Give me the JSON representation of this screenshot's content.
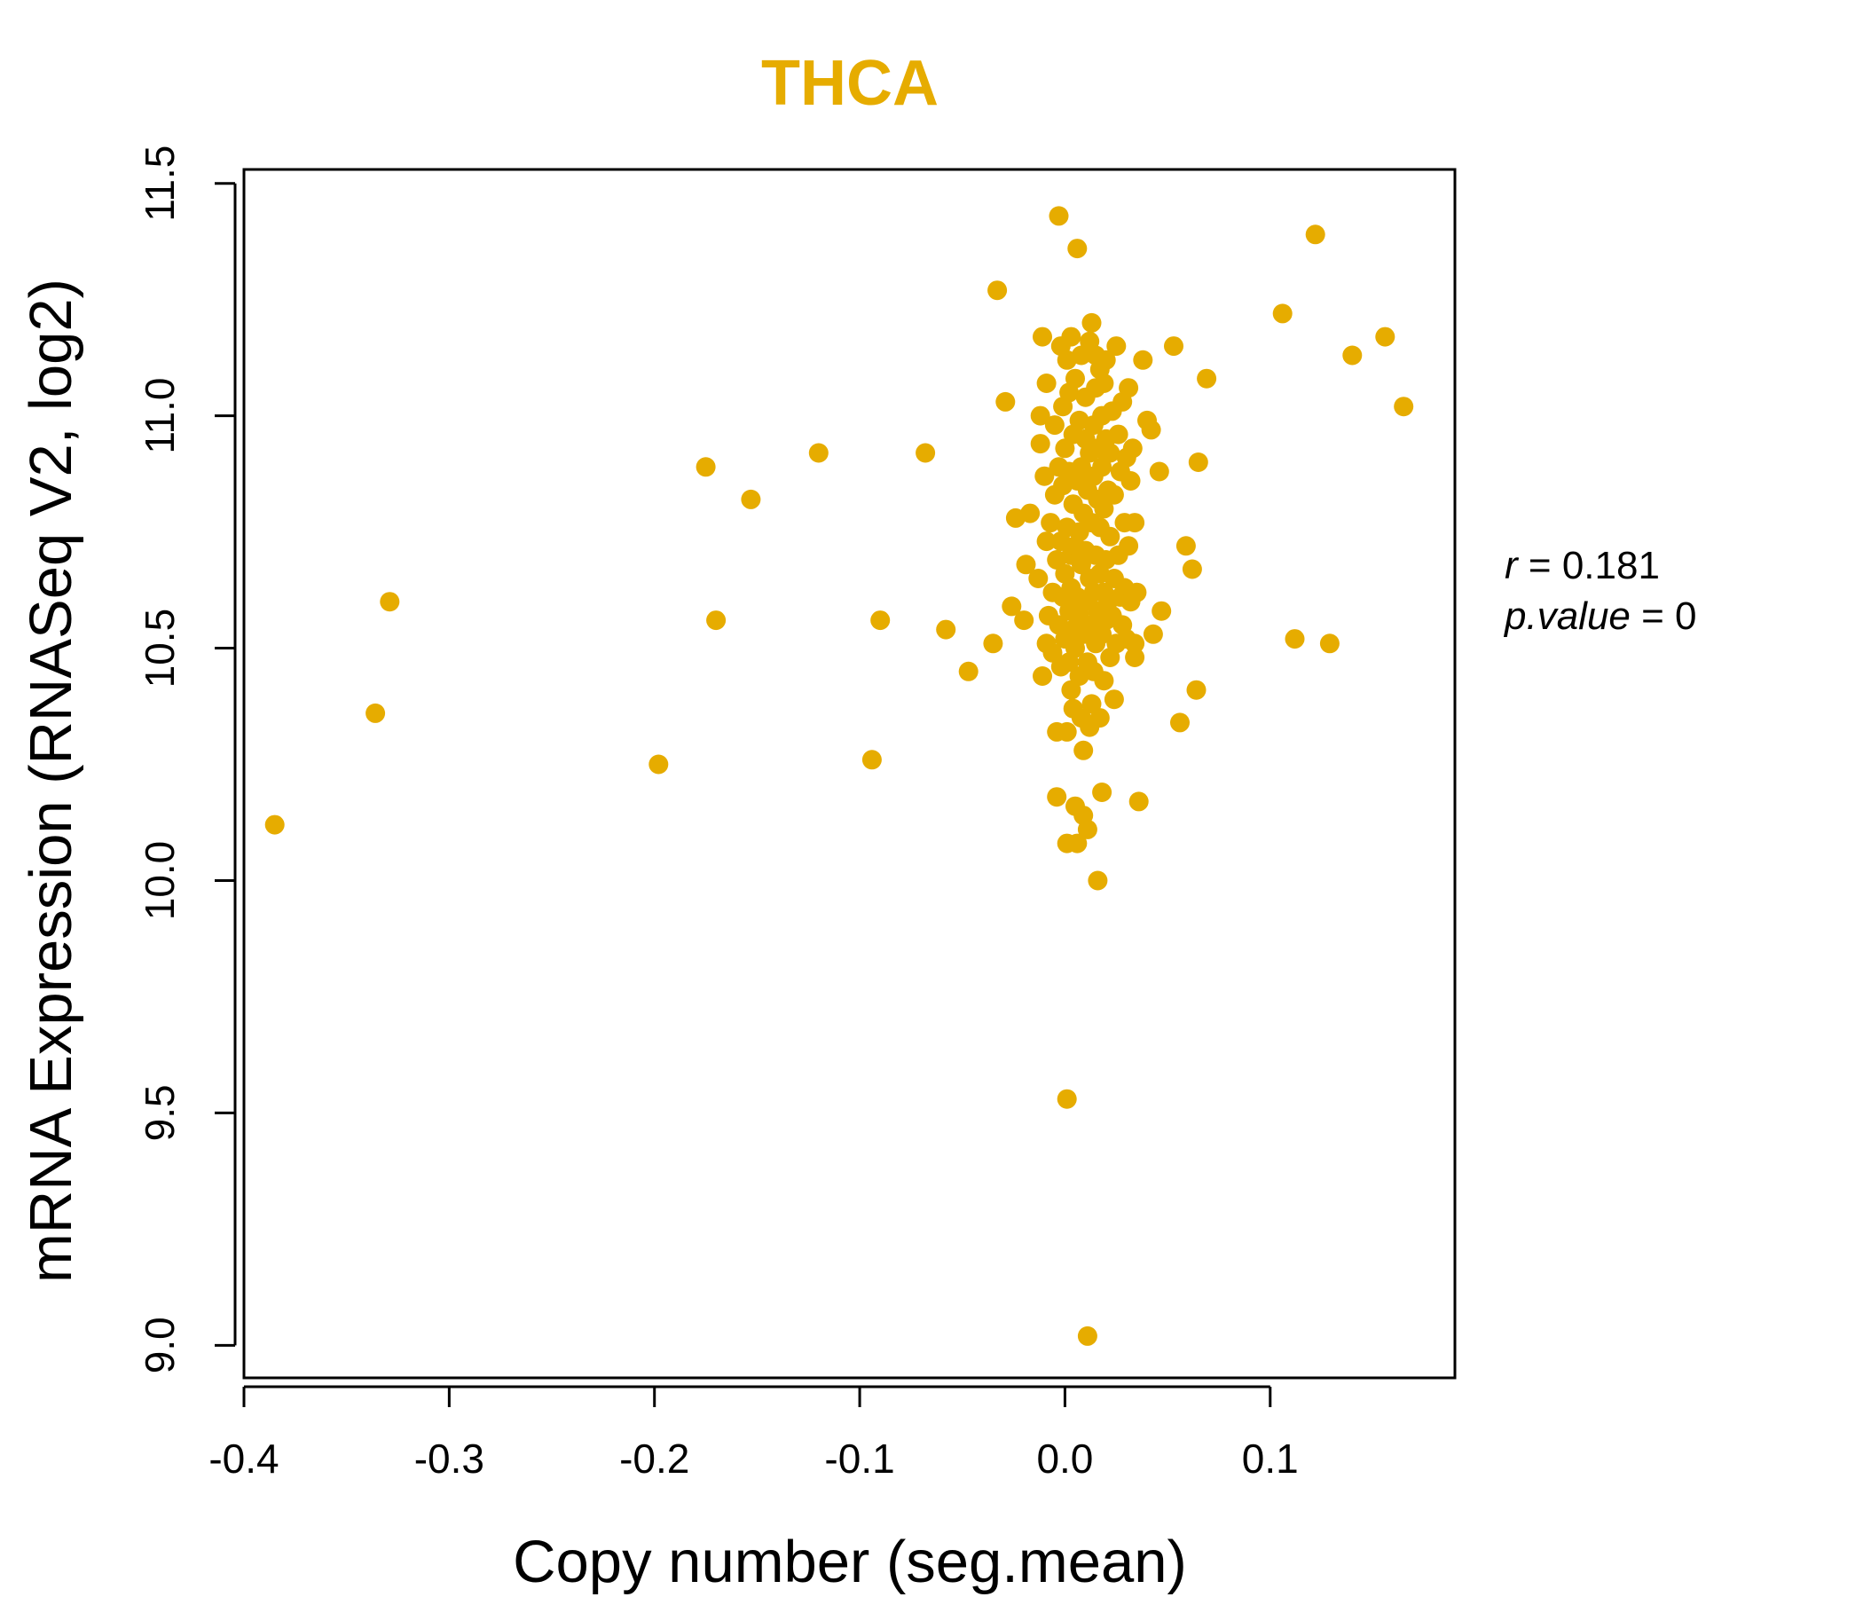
{
  "chart_data": {
    "type": "scatter",
    "title": "THCA",
    "xlabel": "Copy number (seg.mean)",
    "ylabel": "mRNA Expression (RNASeq V2, log2)",
    "xlim": [
      -0.4,
      0.19
    ],
    "ylim": [
      8.93,
      11.53
    ],
    "x_ticks": [
      -0.4,
      -0.3,
      -0.2,
      -0.1,
      0.0,
      0.1
    ],
    "x_tick_labels": [
      "-0.4",
      "-0.3",
      "-0.2",
      "-0.1",
      "0.0",
      "0.1"
    ],
    "y_ticks": [
      9.0,
      9.5,
      10.0,
      10.5,
      11.0,
      11.5
    ],
    "y_tick_labels": [
      "9.0",
      "9.5",
      "10.0",
      "10.5",
      "11.0",
      "11.5"
    ],
    "point_color": "#E6AC00",
    "title_color": "#E6AC00",
    "grid": false,
    "annotation": {
      "r_label": "r",
      "r_value": "0.181",
      "p_label": "p.value",
      "p_value": "0"
    },
    "points": [
      [
        -0.385,
        10.12
      ],
      [
        -0.336,
        10.36
      ],
      [
        -0.329,
        10.6
      ],
      [
        -0.198,
        10.25
      ],
      [
        -0.175,
        10.89
      ],
      [
        -0.17,
        10.56
      ],
      [
        -0.153,
        10.82
      ],
      [
        -0.12,
        10.92
      ],
      [
        -0.094,
        10.26
      ],
      [
        -0.09,
        10.56
      ],
      [
        -0.068,
        10.92
      ],
      [
        -0.058,
        10.54
      ],
      [
        -0.047,
        10.45
      ],
      [
        -0.035,
        10.51
      ],
      [
        -0.033,
        11.27
      ],
      [
        -0.029,
        11.03
      ],
      [
        -0.026,
        10.59
      ],
      [
        -0.024,
        10.78
      ],
      [
        -0.02,
        10.56
      ],
      [
        -0.019,
        10.68
      ],
      [
        -0.017,
        10.79
      ],
      [
        -0.013,
        10.65
      ],
      [
        -0.012,
        10.94
      ],
      [
        -0.012,
        11.0
      ],
      [
        -0.011,
        10.44
      ],
      [
        -0.011,
        11.17
      ],
      [
        -0.01,
        10.87
      ],
      [
        -0.009,
        10.51
      ],
      [
        -0.009,
        10.73
      ],
      [
        -0.009,
        11.07
      ],
      [
        -0.008,
        10.57
      ],
      [
        -0.007,
        10.77
      ],
      [
        -0.006,
        10.49
      ],
      [
        -0.006,
        10.62
      ],
      [
        -0.005,
        10.83
      ],
      [
        -0.005,
        10.98
      ],
      [
        -0.004,
        10.32
      ],
      [
        -0.004,
        10.18
      ],
      [
        -0.004,
        10.69
      ],
      [
        -0.003,
        11.43
      ],
      [
        -0.003,
        10.55
      ],
      [
        -0.003,
        10.89
      ],
      [
        -0.002,
        11.15
      ],
      [
        -0.002,
        10.46
      ],
      [
        -0.002,
        10.73
      ],
      [
        -0.001,
        11.02
      ],
      [
        -0.001,
        10.61
      ],
      [
        -0.001,
        10.85
      ],
      [
        0.0,
        10.52
      ],
      [
        0.0,
        10.66
      ],
      [
        0.0,
        10.93
      ],
      [
        0.001,
        10.08
      ],
      [
        0.001,
        9.53
      ],
      [
        0.001,
        10.32
      ],
      [
        0.001,
        10.76
      ],
      [
        0.001,
        11.12
      ],
      [
        0.002,
        10.58
      ],
      [
        0.002,
        10.47
      ],
      [
        0.002,
        10.88
      ],
      [
        0.002,
        11.05
      ],
      [
        0.003,
        10.7
      ],
      [
        0.003,
        11.17
      ],
      [
        0.003,
        10.41
      ],
      [
        0.003,
        10.63
      ],
      [
        0.004,
        10.37
      ],
      [
        0.004,
        10.81
      ],
      [
        0.004,
        10.96
      ],
      [
        0.004,
        10.54
      ],
      [
        0.005,
        10.72
      ],
      [
        0.005,
        10.16
      ],
      [
        0.005,
        11.08
      ],
      [
        0.005,
        10.5
      ],
      [
        0.006,
        10.86
      ],
      [
        0.006,
        10.61
      ],
      [
        0.006,
        11.36
      ],
      [
        0.006,
        10.08
      ],
      [
        0.007,
        10.75
      ],
      [
        0.007,
        10.44
      ],
      [
        0.007,
        10.99
      ],
      [
        0.007,
        10.57
      ],
      [
        0.008,
        11.13
      ],
      [
        0.008,
        10.68
      ],
      [
        0.008,
        10.35
      ],
      [
        0.008,
        10.89
      ],
      [
        0.009,
        10.53
      ],
      [
        0.009,
        10.79
      ],
      [
        0.009,
        10.14
      ],
      [
        0.009,
        10.28
      ],
      [
        0.01,
        10.95
      ],
      [
        0.01,
        10.6
      ],
      [
        0.01,
        11.04
      ],
      [
        0.01,
        10.71
      ],
      [
        0.011,
        9.02
      ],
      [
        0.011,
        10.11
      ],
      [
        0.011,
        10.47
      ],
      [
        0.011,
        10.84
      ],
      [
        0.012,
        10.33
      ],
      [
        0.012,
        10.65
      ],
      [
        0.012,
        11.16
      ],
      [
        0.012,
        10.92
      ],
      [
        0.013,
        11.2
      ],
      [
        0.013,
        10.55
      ],
      [
        0.013,
        10.77
      ],
      [
        0.013,
        10.38
      ],
      [
        0.014,
        10.98
      ],
      [
        0.014,
        10.62
      ],
      [
        0.014,
        10.45
      ],
      [
        0.014,
        10.87
      ],
      [
        0.015,
        11.06
      ],
      [
        0.015,
        10.7
      ],
      [
        0.015,
        10.51
      ],
      [
        0.015,
        11.13
      ],
      [
        0.016,
        10.0
      ],
      [
        0.016,
        10.82
      ],
      [
        0.016,
        10.58
      ],
      [
        0.016,
        10.93
      ],
      [
        0.017,
        10.66
      ],
      [
        0.017,
        10.35
      ],
      [
        0.017,
        11.1
      ],
      [
        0.017,
        10.76
      ],
      [
        0.018,
        10.19
      ],
      [
        0.018,
        10.53
      ],
      [
        0.018,
        10.89
      ],
      [
        0.018,
        11.0
      ],
      [
        0.019,
        10.62
      ],
      [
        0.019,
        10.43
      ],
      [
        0.019,
        10.8
      ],
      [
        0.019,
        11.07
      ],
      [
        0.02,
        10.95
      ],
      [
        0.02,
        10.69
      ],
      [
        0.02,
        10.56
      ],
      [
        0.02,
        11.12
      ],
      [
        0.021,
        10.84
      ],
      [
        0.021,
        10.6
      ],
      [
        0.022,
        10.48
      ],
      [
        0.022,
        10.92
      ],
      [
        0.022,
        10.74
      ],
      [
        0.023,
        11.01
      ],
      [
        0.023,
        10.57
      ],
      [
        0.024,
        10.39
      ],
      [
        0.024,
        10.83
      ],
      [
        0.024,
        10.65
      ],
      [
        0.025,
        11.15
      ],
      [
        0.025,
        10.51
      ],
      [
        0.026,
        10.96
      ],
      [
        0.026,
        10.7
      ],
      [
        0.027,
        10.61
      ],
      [
        0.027,
        10.88
      ],
      [
        0.028,
        10.55
      ],
      [
        0.028,
        11.03
      ],
      [
        0.029,
        10.77
      ],
      [
        0.029,
        10.63
      ],
      [
        0.03,
        10.91
      ],
      [
        0.03,
        10.52
      ],
      [
        0.031,
        10.72
      ],
      [
        0.031,
        11.06
      ],
      [
        0.032,
        10.86
      ],
      [
        0.032,
        10.6
      ],
      [
        0.033,
        10.93
      ],
      [
        0.034,
        10.77
      ],
      [
        0.034,
        10.48
      ],
      [
        0.034,
        10.51
      ],
      [
        0.035,
        10.62
      ],
      [
        0.036,
        10.17
      ],
      [
        0.038,
        11.12
      ],
      [
        0.04,
        10.99
      ],
      [
        0.042,
        10.97
      ],
      [
        0.043,
        10.53
      ],
      [
        0.046,
        10.88
      ],
      [
        0.047,
        10.58
      ],
      [
        0.053,
        11.15
      ],
      [
        0.056,
        10.34
      ],
      [
        0.059,
        10.72
      ],
      [
        0.062,
        10.67
      ],
      [
        0.064,
        10.41
      ],
      [
        0.065,
        10.9
      ],
      [
        0.069,
        11.08
      ],
      [
        0.106,
        11.22
      ],
      [
        0.112,
        10.52
      ],
      [
        0.122,
        11.39
      ],
      [
        0.129,
        10.51
      ],
      [
        0.14,
        11.13
      ],
      [
        0.156,
        11.17
      ],
      [
        0.165,
        11.02
      ]
    ]
  }
}
